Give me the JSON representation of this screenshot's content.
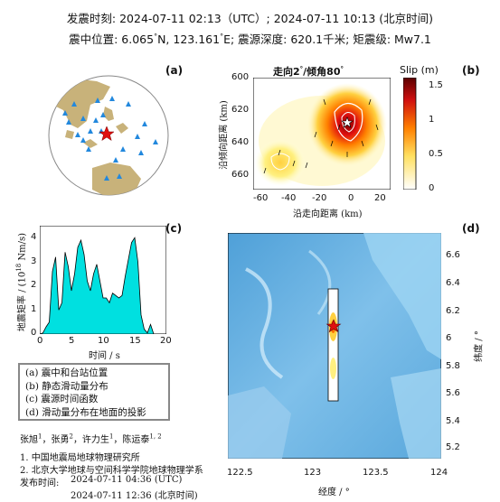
{
  "header": {
    "line1": "发震时刻: 2024-07-11 02:13（UTC）;   2024-07-11  10:13 (北京时间)",
    "line2_a": "震中位置: 6.065",
    "line2_b": "N,  123.161",
    "line2_c": "E;  震源深度: 620.1千米; 矩震级: Mw7.1",
    "deg": "°"
  },
  "panels": {
    "a": "(a)",
    "b": "(b)",
    "c": "(c)",
    "d": "(d)"
  },
  "panel_b": {
    "title_a": "走向2",
    "title_b": "/倾角80",
    "deg": "°",
    "colorbar_label": "Slip (m)",
    "colorbar_ticks": [
      "1.5",
      "1",
      "0.5",
      "0"
    ],
    "y_label": "沿倾向距离 (km)",
    "x_label": "沿走向距离 (km)",
    "y_ticks": [
      "600",
      "620",
      "640",
      "660"
    ],
    "x_ticks": [
      "-60",
      "-40",
      "-20",
      "0",
      "20"
    ]
  },
  "panel_c": {
    "y_label_a": "地震矩率 / (10",
    "y_label_sup": "18",
    "y_label_b": " Nm/s)",
    "x_label": "时间 / s",
    "y_ticks": [
      "0",
      "1",
      "2",
      "3",
      "4"
    ],
    "x_ticks": [
      "0",
      "5",
      "10",
      "15",
      "20"
    ]
  },
  "panel_d": {
    "x_label": "经度 / °",
    "y_label": "纬度 / °",
    "x_ticks": [
      "122.5",
      "123",
      "123.5",
      "124"
    ],
    "y_ticks": [
      "6.6",
      "6.4",
      "6.2",
      "6",
      "5.8",
      "5.6",
      "5.4",
      "5.2"
    ]
  },
  "legend": [
    "(a) 震中和台站位置",
    "(b) 静态滑动量分布",
    "(c) 震源时间函数",
    "(d) 滑动量分布在地面的投影"
  ],
  "authors": {
    "n1": "张旭",
    "s1": "1",
    "n2": "，张勇",
    "s2": "2",
    "n3": "，许力生",
    "s3": "1",
    "n4": "，陈运泰",
    "s4": "1, 2"
  },
  "affiliations": [
    "1. 中国地震局地球物理研究所",
    "2. 北京大学地球与空间科学学院地球物理学系"
  ],
  "release": {
    "label": "发布时间:",
    "time1": "2024-07-11  04:36 (UTC)",
    "time2": "2024-07-11  12:36 (北京时间)"
  },
  "chart_data": {
    "type": "area",
    "xlim": [
      0,
      20
    ],
    "ylim": [
      0,
      4.5
    ],
    "x": [
      0,
      0.5,
      1,
      1.5,
      2,
      2.5,
      3,
      3.5,
      4,
      4.5,
      5,
      5.5,
      6,
      6.5,
      7,
      7.5,
      8,
      8.5,
      9,
      9.5,
      10,
      10.5,
      11,
      11.5,
      12,
      12.5,
      13,
      13.5,
      14,
      14.5,
      15,
      15.5,
      16,
      16.5,
      17,
      17.5,
      18
    ],
    "values": [
      0,
      0.05,
      0.3,
      0.5,
      2.6,
      3.2,
      1.0,
      1.3,
      3.4,
      2.8,
      1.8,
      2.5,
      3.6,
      3.9,
      3.3,
      2.2,
      1.8,
      2.5,
      2.9,
      2.2,
      1.5,
      1.5,
      1.3,
      1.7,
      1.6,
      1.5,
      1.6,
      2.4,
      3.1,
      3.8,
      4.0,
      3.0,
      0.8,
      0.2,
      0.05,
      0.4,
      0.0
    ],
    "color": "#00E0E0"
  }
}
